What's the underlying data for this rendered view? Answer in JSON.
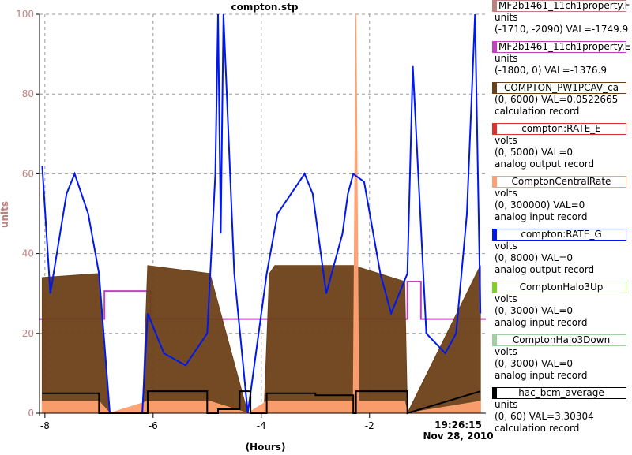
{
  "chart_data": {
    "type": "line",
    "title": "compton.stp",
    "ylabel": "units",
    "xlabel": "(Hours)",
    "timestamp": "19:26:15",
    "date": "Nov 28, 2010",
    "xlim": [
      -8.1,
      0.15
    ],
    "ylim": [
      0,
      100
    ],
    "xticks": [
      -8,
      -6,
      -4,
      -2
    ],
    "xtick_labels": [
      "-8",
      "-6",
      "-4",
      "-2"
    ],
    "yticks": [
      0,
      20,
      40,
      60,
      80,
      100
    ],
    "ytick_labels": [
      "0",
      "20",
      "40",
      "60",
      "80",
      "100"
    ],
    "grid": true,
    "legend_position": "right",
    "series": [
      {
        "name": "MF2b1461_11ch1property.F",
        "color": "#c08080",
        "unit": "units",
        "range": "(-1710, -2090)",
        "value": "VAL=-1749.9",
        "description": "",
        "x": [],
        "values": []
      },
      {
        "name": "MF2b1461_11ch1property.E",
        "color": "#c040c0",
        "unit": "units",
        "range": "(-1800, 0)",
        "value": "VAL=-1376.9",
        "description": "",
        "x": [
          -8.1,
          -6.9,
          -6.9,
          -6.05,
          -6.05,
          -1.3,
          -1.3,
          -1.05,
          -1.05,
          0.15
        ],
        "values": [
          23.6,
          23.6,
          30.6,
          30.6,
          23.6,
          23.6,
          33,
          33,
          23.6,
          23.6
        ]
      },
      {
        "name": "COMPTON_PW1PCAV_ca",
        "color": "#6b4018",
        "unit": "",
        "range": "(0, 6000)",
        "value": "VAL=0.0522665",
        "description": "calculation record",
        "x": [
          -8.05,
          -7.0,
          -6.8,
          -6.2,
          -6.1,
          -4.95,
          -4.25,
          -3.95,
          -3.85,
          -3.75,
          -2.3,
          -1.35,
          -1.3,
          0.05
        ],
        "values": [
          34,
          35,
          0,
          0,
          37,
          35,
          0,
          0,
          35,
          37,
          37,
          33,
          0,
          37
        ]
      },
      {
        "name": "compton:RATE_E",
        "color": "#e03030",
        "unit": "volts",
        "range": "(0, 5000)",
        "value": "VAL=0",
        "description": "analog output record",
        "x": [],
        "values": []
      },
      {
        "name": "ComptonCentralRate",
        "color": "#ffa070",
        "unit": "volts",
        "range": "(0, 300000)",
        "value": "VAL=0",
        "description": "analog input record",
        "x": [
          -8.05,
          -7.0,
          -6.8,
          -6.1,
          -4.95,
          -4.25,
          -3.9,
          -2.3,
          -2.25,
          -2.2,
          -1.35,
          -1.3,
          0.05
        ],
        "values": [
          3,
          3,
          0,
          3,
          3,
          0,
          3,
          3,
          100,
          3,
          3,
          0,
          3
        ]
      },
      {
        "name": "compton:RATE_G",
        "color": "#0018f0",
        "unit": "volts",
        "range": "(0, 8000)",
        "value": "VAL=0",
        "description": "analog output record",
        "x": [
          -8.05,
          -7.9,
          -7.6,
          -7.45,
          -7.2,
          -7.0,
          -6.8,
          -6.2,
          -6.1,
          -5.8,
          -5.4,
          -5.0,
          -4.85,
          -4.8,
          -4.75,
          -4.7,
          -4.5,
          -4.25,
          -3.9,
          -3.7,
          -3.2,
          -3.05,
          -2.8,
          -2.5,
          -2.4,
          -2.3,
          -2.1,
          -1.8,
          -1.6,
          -1.3,
          -1.2,
          -0.95,
          -0.6,
          -0.4,
          -0.2,
          -0.05,
          0.05
        ],
        "values": [
          62,
          30,
          55,
          60,
          50,
          35,
          0,
          0,
          25,
          15,
          12,
          20,
          60,
          100,
          45,
          100,
          35,
          0,
          35,
          50,
          60,
          55,
          30,
          45,
          55,
          60,
          58,
          35,
          25,
          35,
          87,
          20,
          15,
          20,
          50,
          100,
          25
        ]
      },
      {
        "name": "ComptonHalo3Up",
        "color": "#80d020",
        "unit": "volts",
        "range": "(0, 3000)",
        "value": "VAL=0",
        "description": "analog input record",
        "x": [],
        "values": []
      },
      {
        "name": "ComptonHalo3Down",
        "color": "#a0d0a0",
        "unit": "volts",
        "range": "(0, 3000)",
        "value": "VAL=0",
        "description": "analog input record",
        "x": [],
        "values": []
      },
      {
        "name": "hac_bcm_average",
        "color": "#000000",
        "unit": "units",
        "range": "(0, 60)",
        "value": "VAL=3.30304",
        "description": "calculation record",
        "x": [
          -8.05,
          -7.0,
          -7.0,
          -6.8,
          -6.8,
          -6.1,
          -6.1,
          -5.0,
          -5.0,
          -4.8,
          -4.8,
          -4.4,
          -4.4,
          -4.2,
          -4.2,
          -3.9,
          -3.9,
          -3.0,
          -3.0,
          -2.3,
          -2.3,
          -2.25,
          -2.25,
          -1.3,
          -1.3,
          0.05
        ],
        "values": [
          5,
          5,
          0,
          0,
          0,
          0,
          5.5,
          5.5,
          0,
          0,
          1,
          1,
          5.5,
          5.5,
          0,
          0,
          5,
          5,
          4.5,
          4.5,
          0,
          0,
          5.5,
          5.5,
          0,
          5.5
        ]
      }
    ]
  }
}
